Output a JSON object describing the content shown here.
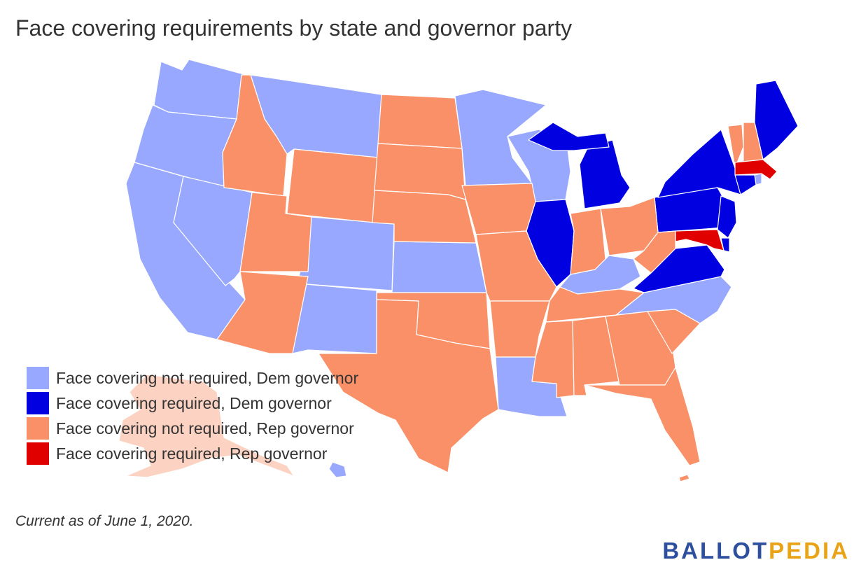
{
  "title": "Face covering requirements by state and governor party",
  "legend": {
    "items": [
      {
        "label": "Face covering not required, Dem governor",
        "color": "#98a8ff"
      },
      {
        "label": "Face covering required, Dem governor",
        "color": "#0000e0"
      },
      {
        "label": "Face covering not required, Rep governor",
        "color": "#fa9068"
      },
      {
        "label": "Face covering required, Rep governor",
        "color": "#e00000"
      }
    ]
  },
  "note": "Current as of June 1, 2020.",
  "logo": {
    "part1": "BALLOT",
    "part2": "PEDIA"
  },
  "map_data": {
    "type": "choropleth",
    "region": "United States",
    "categories": {
      "dem_not_required": [
        "Washington",
        "Oregon",
        "California",
        "Nevada",
        "Montana",
        "Colorado",
        "New Mexico",
        "Kansas",
        "Minnesota",
        "Wisconsin",
        "Kentucky",
        "North Carolina",
        "Louisiana",
        "Hawaii"
      ],
      "dem_required": [
        "Michigan",
        "Illinois",
        "Pennsylvania",
        "New York",
        "New Jersey",
        "Delaware",
        "Virginia",
        "Connecticut",
        "Maine"
      ],
      "rep_not_required": [
        "Idaho",
        "Utah",
        "Arizona",
        "Wyoming",
        "North Dakota",
        "South Dakota",
        "Nebraska",
        "Oklahoma",
        "Texas",
        "Iowa",
        "Missouri",
        "Arkansas",
        "Mississippi",
        "Alabama",
        "Georgia",
        "Florida",
        "Tennessee",
        "South Carolina",
        "Indiana",
        "Ohio",
        "West Virginia",
        "Vermont",
        "New Hampshire",
        "Alaska"
      ],
      "rep_required": [
        "Massachusetts",
        "Maryland"
      ]
    }
  }
}
